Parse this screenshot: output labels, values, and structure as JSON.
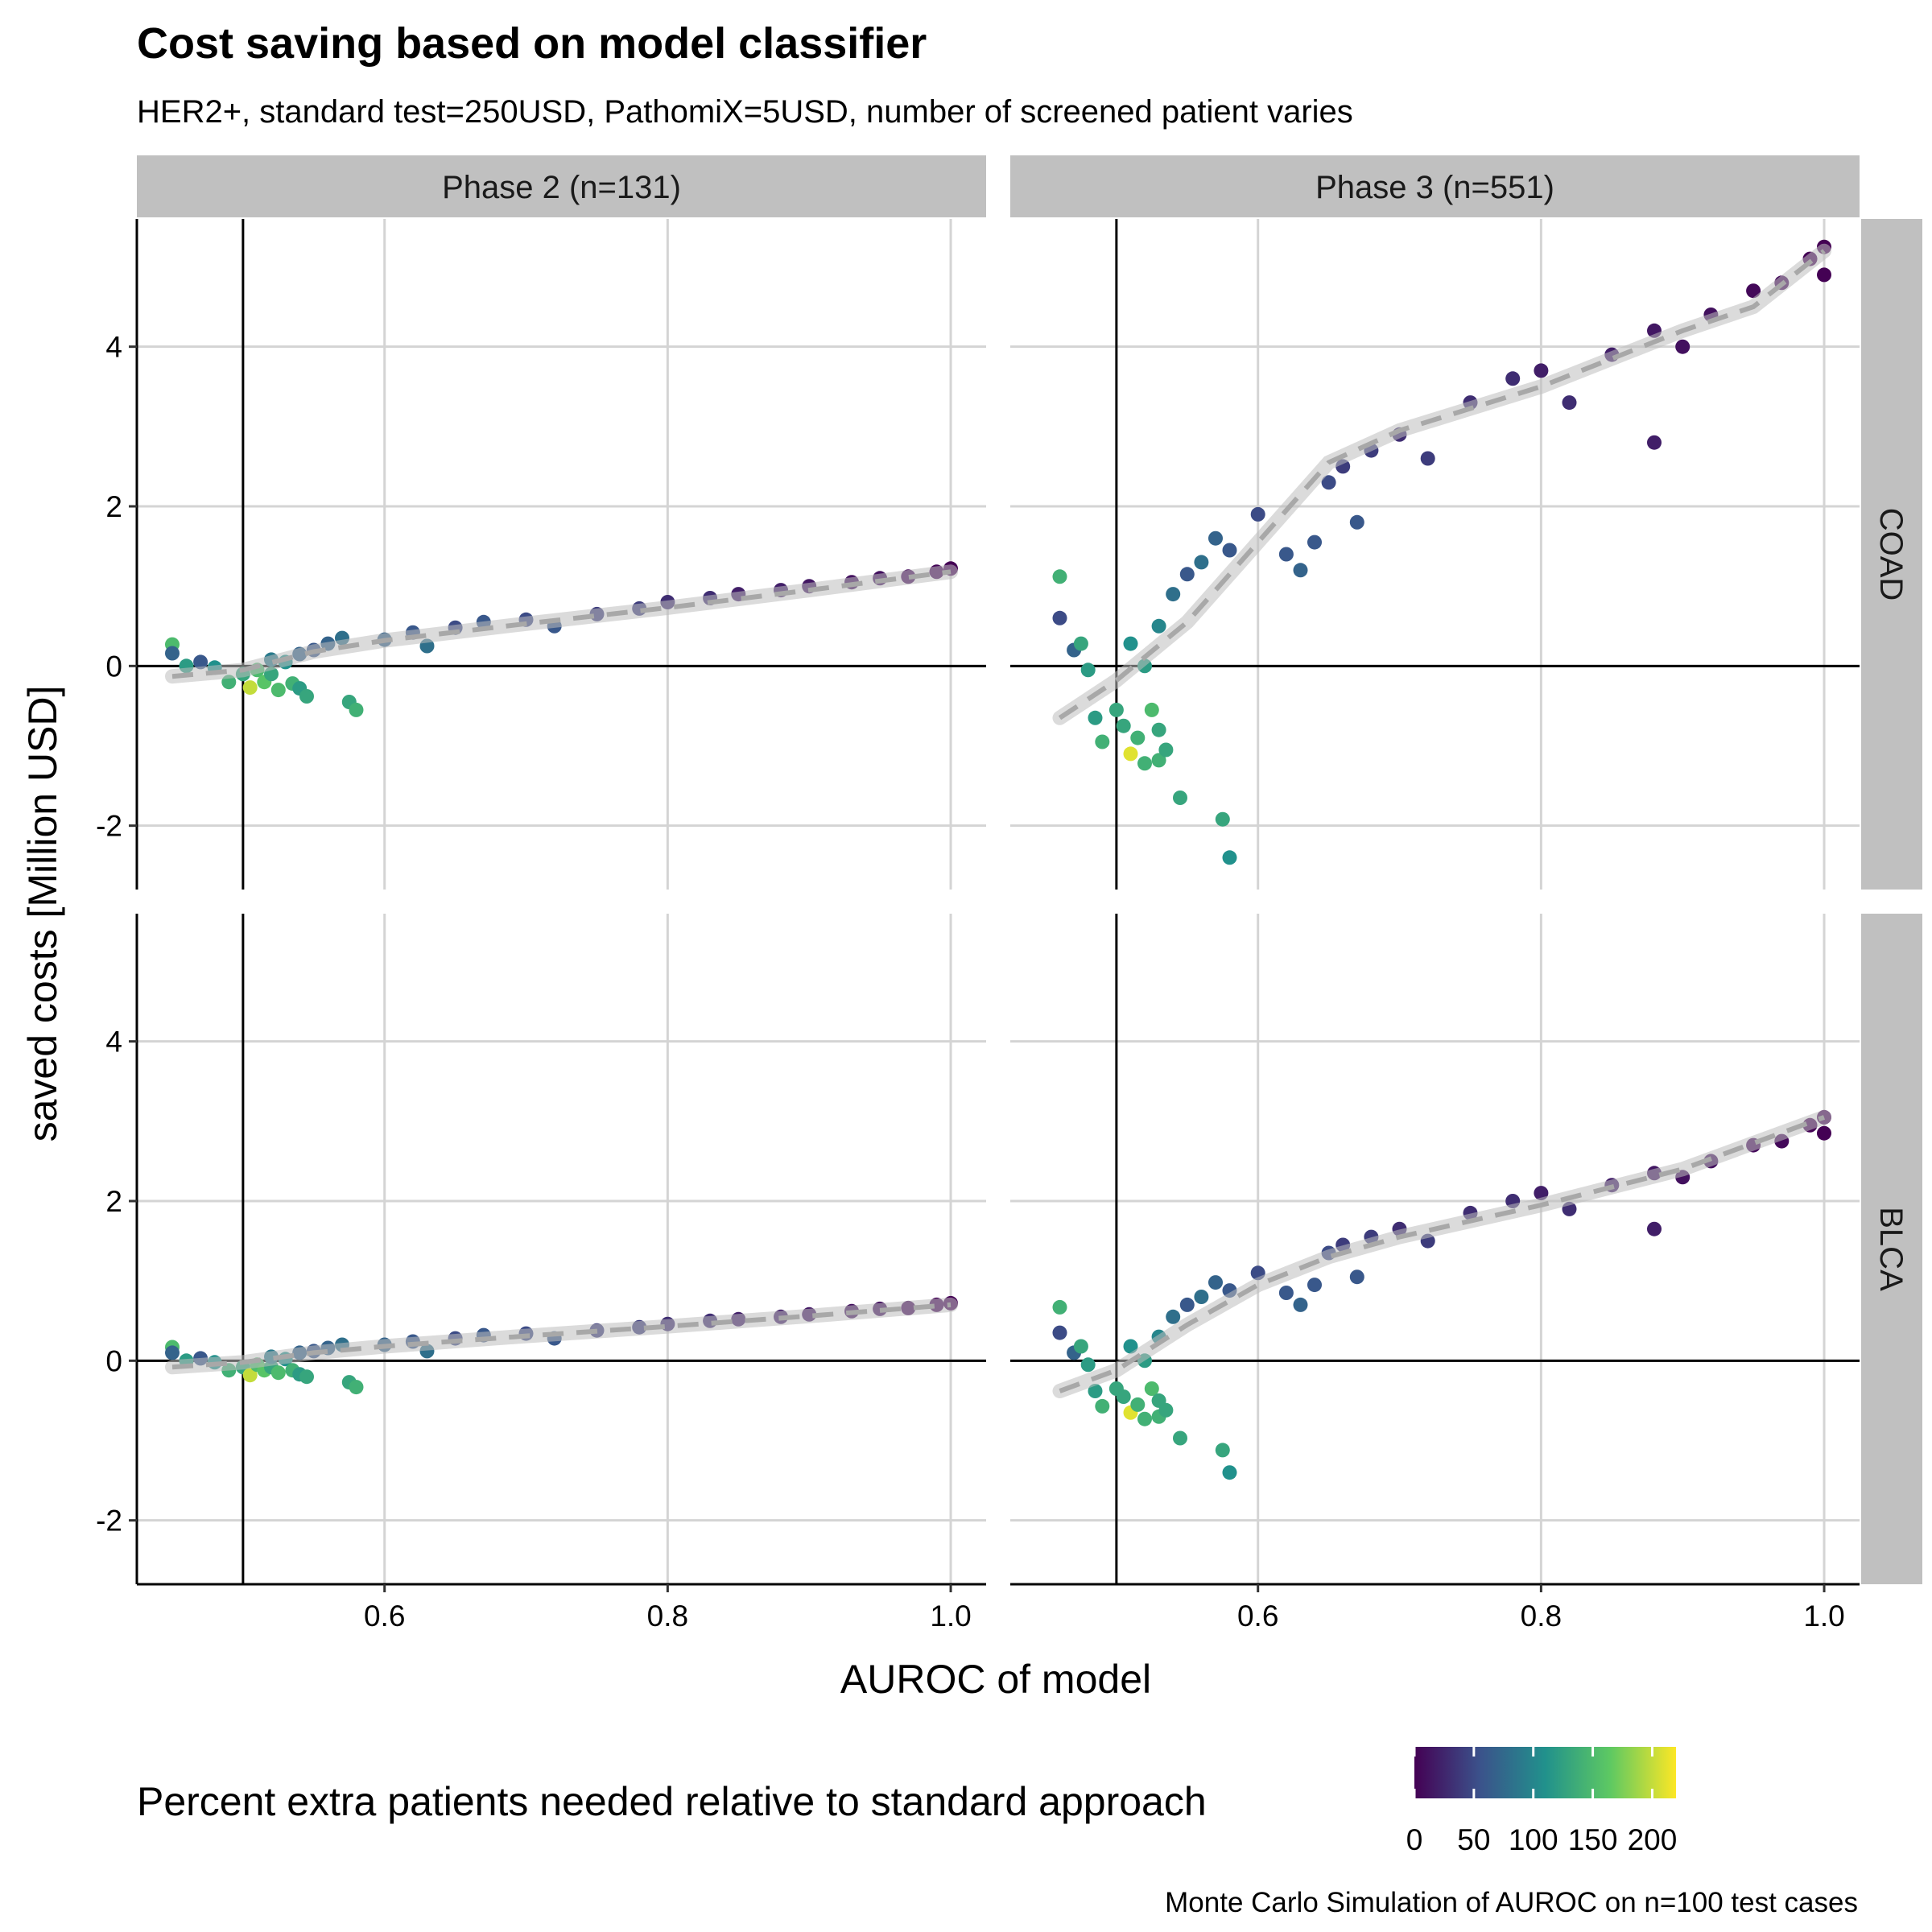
{
  "chart_data": {
    "type": "scatter",
    "title": "Cost saving based on model classifier",
    "subtitle": "HER2+, standard test=250USD, PathomiX=5USD, number of screened patient varies",
    "xlabel": "AUROC of model",
    "ylabel": "saved costs [Million USD]",
    "caption": "Monte Carlo Simulation of AUROC on n=100 test cases",
    "xlim": [
      0.425,
      1.025
    ],
    "ylim": [
      -2.8,
      5.6
    ],
    "x_ticks": [
      "0.6",
      "0.8",
      "1.0"
    ],
    "y_ticks": [
      "-2",
      "0",
      "2",
      "4"
    ],
    "x_tick_values": [
      0.6,
      0.8,
      1.0
    ],
    "y_tick_values": [
      -2,
      0,
      2,
      4
    ],
    "reference_lines": {
      "x": 0.5,
      "y": 0
    },
    "columns": [
      "Phase 2 (n=131)",
      "Phase 3 (n=551)"
    ],
    "rows": [
      "COAD",
      "BLCA"
    ],
    "grid": true,
    "legend": {
      "title": "Percent extra patients needed relative to standard approach",
      "position": "bottom",
      "type": "colorbar",
      "tick_labels": [
        "0",
        "50",
        "100",
        "150",
        "200"
      ],
      "tick_values": [
        0,
        50,
        100,
        150,
        200
      ],
      "range": [
        0,
        220
      ],
      "colors": [
        "#440154",
        "#3b528b",
        "#21918c",
        "#5ec962",
        "#fde725"
      ]
    },
    "panels": [
      {
        "column": "Phase 2 (n=131)",
        "row": "COAD",
        "smooth": [
          [
            0.45,
            -0.13
          ],
          [
            0.5,
            -0.05
          ],
          [
            0.55,
            0.18
          ],
          [
            0.6,
            0.32
          ],
          [
            0.7,
            0.53
          ],
          [
            0.8,
            0.73
          ],
          [
            0.9,
            0.95
          ],
          [
            1.0,
            1.18
          ]
        ],
        "points": [
          [
            0.45,
            0.27,
            150
          ],
          [
            0.45,
            0.16,
            70
          ],
          [
            0.46,
            0.0,
            120
          ],
          [
            0.47,
            0.05,
            60
          ],
          [
            0.48,
            -0.02,
            110
          ],
          [
            0.49,
            -0.2,
            140
          ],
          [
            0.5,
            -0.1,
            130
          ],
          [
            0.505,
            -0.27,
            200
          ],
          [
            0.51,
            -0.05,
            150
          ],
          [
            0.515,
            -0.2,
            160
          ],
          [
            0.52,
            -0.1,
            130
          ],
          [
            0.525,
            -0.3,
            150
          ],
          [
            0.53,
            0.05,
            110
          ],
          [
            0.535,
            -0.22,
            140
          ],
          [
            0.54,
            -0.28,
            120
          ],
          [
            0.545,
            -0.38,
            130
          ],
          [
            0.52,
            0.08,
            90
          ],
          [
            0.54,
            0.15,
            70
          ],
          [
            0.55,
            0.2,
            60
          ],
          [
            0.56,
            0.28,
            70
          ],
          [
            0.575,
            -0.45,
            130
          ],
          [
            0.58,
            -0.55,
            140
          ],
          [
            0.57,
            0.35,
            80
          ],
          [
            0.6,
            0.33,
            70
          ],
          [
            0.62,
            0.42,
            60
          ],
          [
            0.63,
            0.25,
            80
          ],
          [
            0.65,
            0.48,
            50
          ],
          [
            0.67,
            0.55,
            60
          ],
          [
            0.7,
            0.58,
            50
          ],
          [
            0.72,
            0.5,
            60
          ],
          [
            0.75,
            0.65,
            40
          ],
          [
            0.78,
            0.72,
            40
          ],
          [
            0.8,
            0.8,
            30
          ],
          [
            0.83,
            0.85,
            30
          ],
          [
            0.85,
            0.9,
            20
          ],
          [
            0.88,
            0.95,
            20
          ],
          [
            0.9,
            1.0,
            15
          ],
          [
            0.93,
            1.05,
            10
          ],
          [
            0.95,
            1.1,
            10
          ],
          [
            0.97,
            1.12,
            5
          ],
          [
            0.99,
            1.18,
            3
          ],
          [
            1.0,
            1.22,
            0
          ]
        ]
      },
      {
        "column": "Phase 3 (n=551)",
        "row": "COAD",
        "smooth": [
          [
            0.46,
            -0.65
          ],
          [
            0.5,
            -0.18
          ],
          [
            0.55,
            0.55
          ],
          [
            0.6,
            1.55
          ],
          [
            0.65,
            2.55
          ],
          [
            0.7,
            2.95
          ],
          [
            0.8,
            3.5
          ],
          [
            0.9,
            4.2
          ],
          [
            0.95,
            4.5
          ],
          [
            1.0,
            5.2
          ]
        ],
        "points": [
          [
            0.46,
            1.12,
            140
          ],
          [
            0.46,
            0.6,
            50
          ],
          [
            0.47,
            0.2,
            70
          ],
          [
            0.475,
            0.28,
            130
          ],
          [
            0.48,
            -0.05,
            120
          ],
          [
            0.485,
            -0.65,
            120
          ],
          [
            0.49,
            -0.95,
            140
          ],
          [
            0.5,
            -0.55,
            130
          ],
          [
            0.505,
            -0.75,
            130
          ],
          [
            0.51,
            -1.1,
            210
          ],
          [
            0.51,
            0.28,
            110
          ],
          [
            0.515,
            -0.9,
            140
          ],
          [
            0.52,
            -1.22,
            140
          ],
          [
            0.525,
            -0.55,
            150
          ],
          [
            0.53,
            -0.8,
            130
          ],
          [
            0.53,
            -1.18,
            140
          ],
          [
            0.535,
            -1.05,
            130
          ],
          [
            0.545,
            -1.65,
            130
          ],
          [
            0.575,
            -1.92,
            130
          ],
          [
            0.58,
            -2.4,
            110
          ],
          [
            0.52,
            0.0,
            120
          ],
          [
            0.53,
            0.5,
            100
          ],
          [
            0.54,
            0.9,
            80
          ],
          [
            0.55,
            1.15,
            60
          ],
          [
            0.56,
            1.3,
            80
          ],
          [
            0.57,
            1.6,
            70
          ],
          [
            0.58,
            1.45,
            60
          ],
          [
            0.6,
            1.9,
            50
          ],
          [
            0.62,
            1.4,
            60
          ],
          [
            0.63,
            1.2,
            70
          ],
          [
            0.64,
            1.55,
            60
          ],
          [
            0.65,
            2.3,
            50
          ],
          [
            0.66,
            2.5,
            40
          ],
          [
            0.67,
            1.8,
            60
          ],
          [
            0.68,
            2.7,
            40
          ],
          [
            0.7,
            2.9,
            30
          ],
          [
            0.72,
            2.6,
            40
          ],
          [
            0.75,
            3.3,
            30
          ],
          [
            0.78,
            3.6,
            30
          ],
          [
            0.8,
            3.7,
            20
          ],
          [
            0.82,
            3.3,
            30
          ],
          [
            0.85,
            3.9,
            20
          ],
          [
            0.88,
            4.2,
            15
          ],
          [
            0.88,
            2.8,
            20
          ],
          [
            0.9,
            4.0,
            10
          ],
          [
            0.92,
            4.4,
            10
          ],
          [
            0.95,
            4.7,
            5
          ],
          [
            0.97,
            4.8,
            5
          ],
          [
            0.99,
            5.1,
            0
          ],
          [
            1.0,
            5.25,
            0
          ],
          [
            1.0,
            4.9,
            0
          ]
        ]
      },
      {
        "column": "Phase 2 (n=131)",
        "row": "BLCA",
        "smooth": [
          [
            0.45,
            -0.08
          ],
          [
            0.5,
            -0.02
          ],
          [
            0.55,
            0.1
          ],
          [
            0.6,
            0.18
          ],
          [
            0.7,
            0.31
          ],
          [
            0.8,
            0.43
          ],
          [
            0.9,
            0.56
          ],
          [
            1.0,
            0.7
          ]
        ],
        "points": [
          [
            0.45,
            0.17,
            150
          ],
          [
            0.45,
            0.1,
            70
          ],
          [
            0.46,
            0.0,
            120
          ],
          [
            0.47,
            0.03,
            60
          ],
          [
            0.48,
            -0.02,
            110
          ],
          [
            0.49,
            -0.12,
            140
          ],
          [
            0.5,
            -0.08,
            130
          ],
          [
            0.505,
            -0.18,
            200
          ],
          [
            0.51,
            -0.05,
            150
          ],
          [
            0.515,
            -0.12,
            160
          ],
          [
            0.52,
            -0.08,
            130
          ],
          [
            0.525,
            -0.15,
            150
          ],
          [
            0.53,
            0.02,
            110
          ],
          [
            0.535,
            -0.12,
            140
          ],
          [
            0.54,
            -0.17,
            120
          ],
          [
            0.545,
            -0.2,
            130
          ],
          [
            0.52,
            0.05,
            90
          ],
          [
            0.54,
            0.1,
            70
          ],
          [
            0.55,
            0.12,
            60
          ],
          [
            0.56,
            0.16,
            70
          ],
          [
            0.575,
            -0.27,
            130
          ],
          [
            0.58,
            -0.33,
            140
          ],
          [
            0.57,
            0.2,
            80
          ],
          [
            0.6,
            0.2,
            70
          ],
          [
            0.62,
            0.24,
            60
          ],
          [
            0.63,
            0.12,
            80
          ],
          [
            0.65,
            0.28,
            50
          ],
          [
            0.67,
            0.32,
            60
          ],
          [
            0.7,
            0.34,
            50
          ],
          [
            0.72,
            0.28,
            60
          ],
          [
            0.75,
            0.38,
            40
          ],
          [
            0.78,
            0.42,
            40
          ],
          [
            0.8,
            0.46,
            30
          ],
          [
            0.83,
            0.5,
            30
          ],
          [
            0.85,
            0.52,
            20
          ],
          [
            0.88,
            0.55,
            20
          ],
          [
            0.9,
            0.58,
            15
          ],
          [
            0.93,
            0.62,
            10
          ],
          [
            0.95,
            0.65,
            10
          ],
          [
            0.97,
            0.66,
            5
          ],
          [
            0.99,
            0.7,
            3
          ],
          [
            1.0,
            0.72,
            0
          ]
        ]
      },
      {
        "column": "Phase 3 (n=551)",
        "row": "BLCA",
        "smooth": [
          [
            0.46,
            -0.38
          ],
          [
            0.5,
            -0.12
          ],
          [
            0.55,
            0.45
          ],
          [
            0.6,
            0.95
          ],
          [
            0.65,
            1.3
          ],
          [
            0.7,
            1.55
          ],
          [
            0.8,
            1.95
          ],
          [
            0.9,
            2.4
          ],
          [
            1.0,
            3.05
          ]
        ],
        "points": [
          [
            0.46,
            0.67,
            140
          ],
          [
            0.46,
            0.35,
            50
          ],
          [
            0.47,
            0.1,
            70
          ],
          [
            0.475,
            0.18,
            130
          ],
          [
            0.48,
            -0.05,
            120
          ],
          [
            0.485,
            -0.38,
            120
          ],
          [
            0.49,
            -0.57,
            140
          ],
          [
            0.5,
            -0.35,
            130
          ],
          [
            0.505,
            -0.45,
            130
          ],
          [
            0.51,
            -0.65,
            210
          ],
          [
            0.51,
            0.18,
            110
          ],
          [
            0.515,
            -0.55,
            140
          ],
          [
            0.52,
            -0.73,
            140
          ],
          [
            0.525,
            -0.35,
            150
          ],
          [
            0.53,
            -0.5,
            130
          ],
          [
            0.53,
            -0.7,
            140
          ],
          [
            0.535,
            -0.62,
            130
          ],
          [
            0.545,
            -0.97,
            130
          ],
          [
            0.575,
            -1.12,
            130
          ],
          [
            0.58,
            -1.4,
            110
          ],
          [
            0.52,
            0.0,
            120
          ],
          [
            0.53,
            0.3,
            100
          ],
          [
            0.54,
            0.55,
            80
          ],
          [
            0.55,
            0.7,
            60
          ],
          [
            0.56,
            0.8,
            80
          ],
          [
            0.57,
            0.98,
            70
          ],
          [
            0.58,
            0.88,
            60
          ],
          [
            0.6,
            1.1,
            50
          ],
          [
            0.62,
            0.85,
            60
          ],
          [
            0.63,
            0.7,
            70
          ],
          [
            0.64,
            0.95,
            60
          ],
          [
            0.65,
            1.35,
            50
          ],
          [
            0.66,
            1.45,
            40
          ],
          [
            0.67,
            1.05,
            60
          ],
          [
            0.68,
            1.55,
            40
          ],
          [
            0.7,
            1.65,
            30
          ],
          [
            0.72,
            1.5,
            40
          ],
          [
            0.75,
            1.85,
            30
          ],
          [
            0.78,
            2.0,
            30
          ],
          [
            0.8,
            2.1,
            20
          ],
          [
            0.82,
            1.9,
            30
          ],
          [
            0.85,
            2.2,
            20
          ],
          [
            0.88,
            2.35,
            15
          ],
          [
            0.88,
            1.65,
            20
          ],
          [
            0.9,
            2.3,
            10
          ],
          [
            0.92,
            2.5,
            10
          ],
          [
            0.95,
            2.7,
            5
          ],
          [
            0.97,
            2.75,
            5
          ],
          [
            0.99,
            2.95,
            0
          ],
          [
            1.0,
            3.05,
            0
          ],
          [
            1.0,
            2.85,
            0
          ]
        ]
      }
    ]
  }
}
